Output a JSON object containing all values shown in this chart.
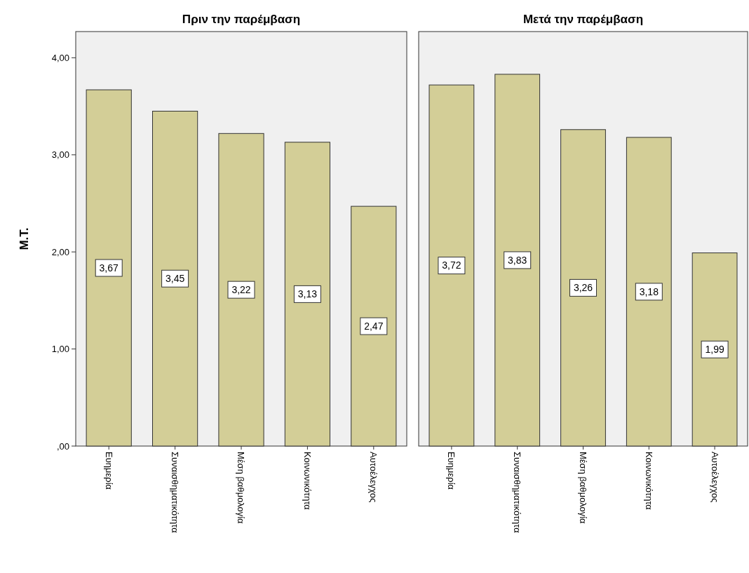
{
  "chart_data": [
    {
      "type": "bar",
      "title": "Πριν την παρέμβαση",
      "ylabel": "Μ.Τ.",
      "categories": [
        "Ευημερία",
        "Συναισθηματικότητα",
        "Μέση βαθμολογία",
        "Κοινωνικότητα",
        "Αυτοέλεγχος"
      ],
      "values": [
        3.67,
        3.45,
        3.22,
        3.13,
        2.47
      ],
      "color": "#d3ce97",
      "ylim": [
        0,
        4.27
      ],
      "yticks": [
        {
          "value": 0,
          "label": ",00"
        },
        {
          "value": 1,
          "label": "1,00"
        },
        {
          "value": 2,
          "label": "2,00"
        },
        {
          "value": 3,
          "label": "3,00"
        },
        {
          "value": 4,
          "label": "4,00"
        }
      ],
      "value_labels": [
        "3,67",
        "3,45",
        "3,22",
        "3,13",
        "2,47"
      ]
    },
    {
      "type": "bar",
      "title": "Μετά την παρέμβαση",
      "categories": [
        "Ευημερία",
        "Συναισθηματικότητα",
        "Μέση βαθμολογία",
        "Κοινωνικότητα",
        "Αυτοέλεγχος"
      ],
      "values": [
        3.72,
        3.83,
        3.26,
        3.18,
        1.99
      ],
      "color": "#d3ce97",
      "ylim": [
        0,
        4.27
      ],
      "value_labels": [
        "3,72",
        "3,83",
        "3,26",
        "3,18",
        "1,99"
      ],
      "tick_labels": "x"
    }
  ]
}
